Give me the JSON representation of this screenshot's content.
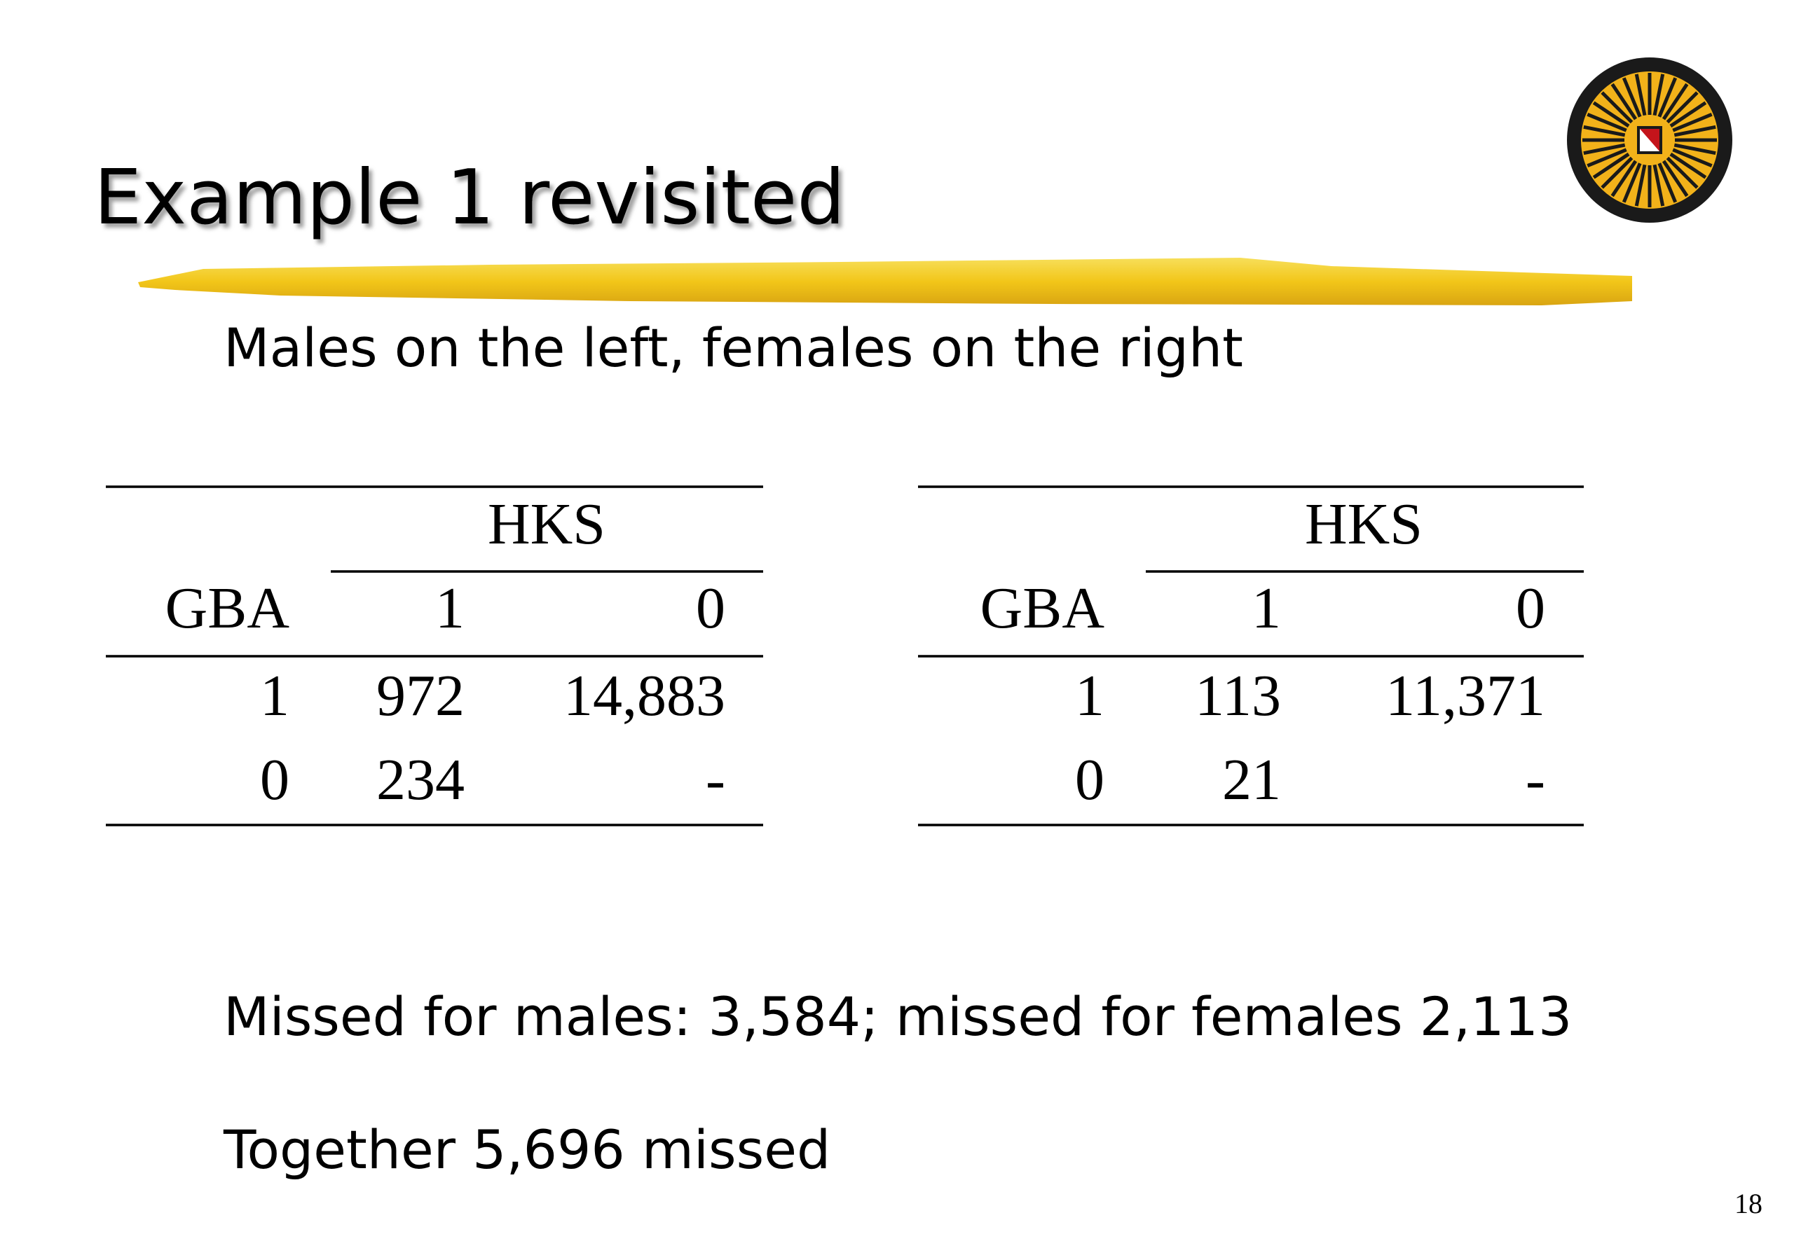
{
  "slide": {
    "title": "Example 1 revisited",
    "subtitle": "Males on the left, females on the right",
    "tables": [
      {
        "column_group": "HKS",
        "row_header": "GBA",
        "columns": [
          "1",
          "0"
        ],
        "rows": [
          [
            "1",
            "972",
            "14,883"
          ],
          [
            "0",
            "234",
            "-"
          ]
        ]
      },
      {
        "column_group": "HKS",
        "row_header": "GBA",
        "columns": [
          "1",
          "0"
        ],
        "rows": [
          [
            "1",
            "113",
            "11,371"
          ],
          [
            "0",
            "21",
            "-"
          ]
        ]
      }
    ],
    "notes": [
      "Missed for males: 3,584; missed for females 2,113",
      "Together 5,696 missed"
    ],
    "page_number": "18"
  }
}
